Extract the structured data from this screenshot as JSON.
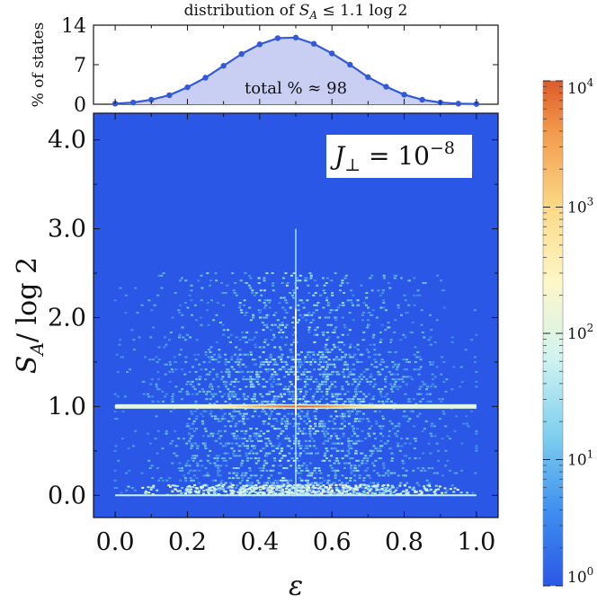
{
  "colors": {
    "background": "#2b57e6",
    "line": "#3358d8",
    "fill": "#c9cff2",
    "cmap": [
      "#2b57e6",
      "#3f8ff0",
      "#7fd0ee",
      "#cff3f1",
      "#fdf7c8",
      "#fbd985",
      "#f39a4c",
      "#dd5a2a"
    ]
  },
  "chart_data": [
    {
      "id": "top-distribution",
      "type": "area",
      "title": "distribution of S_A ≤ 1.1 log 2",
      "title_parts": [
        "distribution of ",
        "S",
        "A",
        " ≤ 1.1 log 2"
      ],
      "ylabel": "% of states",
      "x": [
        0.0,
        0.05,
        0.1,
        0.15,
        0.2,
        0.25,
        0.3,
        0.35,
        0.4,
        0.45,
        0.5,
        0.55,
        0.6,
        0.65,
        0.7,
        0.75,
        0.8,
        0.85,
        0.9,
        0.95,
        1.0
      ],
      "values": [
        0.1,
        0.3,
        0.8,
        1.6,
        3.0,
        4.7,
        6.8,
        8.9,
        10.6,
        11.7,
        11.8,
        10.7,
        9.0,
        7.0,
        4.8,
        3.1,
        1.7,
        0.8,
        0.3,
        0.1,
        0.05
      ],
      "xlim": [
        -0.06,
        1.06
      ],
      "ylim": [
        0,
        14
      ],
      "yticks": [
        0,
        7,
        14
      ],
      "annotation": "total % ≈ 98"
    },
    {
      "id": "main-heatmap",
      "type": "heatmap",
      "xlabel": "ε",
      "ylabel_parts": [
        "S",
        "A",
        "/ log 2"
      ],
      "xlim": [
        -0.06,
        1.06
      ],
      "ylim": [
        -0.25,
        4.3
      ],
      "xticks": [
        "0.0",
        "0.2",
        "0.4",
        "0.6",
        "0.8",
        "1.0"
      ],
      "yticks": [
        "0.0",
        "1.0",
        "2.0",
        "3.0",
        "4.0"
      ],
      "annotation_parts": [
        "J",
        "⊥",
        " = 10",
        "−8"
      ],
      "features": {
        "bright_band_y": 1.0,
        "baseline_y": 0.0,
        "vertical_spike_x": 0.5,
        "spike_top_y": 3.0
      }
    },
    {
      "id": "colorbar",
      "type": "colorbar",
      "scale": "log",
      "range": [
        1,
        10000
      ],
      "tick_labels": [
        {
          "base": "10",
          "exp": "0"
        },
        {
          "base": "10",
          "exp": "1"
        },
        {
          "base": "10",
          "exp": "2"
        },
        {
          "base": "10",
          "exp": "3"
        },
        {
          "base": "10",
          "exp": "4"
        }
      ]
    }
  ]
}
